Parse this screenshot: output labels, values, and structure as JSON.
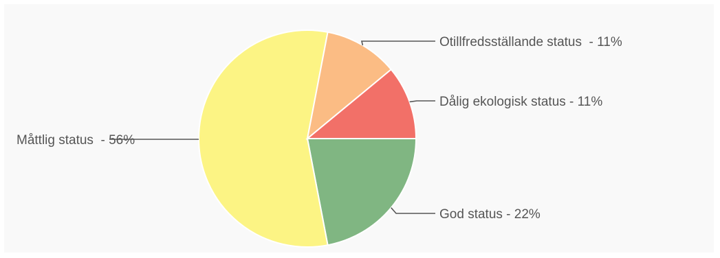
{
  "chart_data": {
    "type": "pie",
    "start_angle_deg": 0,
    "direction": "clockwise",
    "legend": "none",
    "slices": [
      {
        "label": "God status - 22%",
        "value": 22,
        "color": "#80b682"
      },
      {
        "label": "Måttlig status  - 56%",
        "value": 56,
        "color": "#fcf484"
      },
      {
        "label": "Otillfredsställande status  - 11%",
        "value": 11,
        "color": "#fbbc84"
      },
      {
        "label": "Dålig ekologisk status - 11%",
        "value": 11,
        "color": "#f27068"
      }
    ]
  }
}
